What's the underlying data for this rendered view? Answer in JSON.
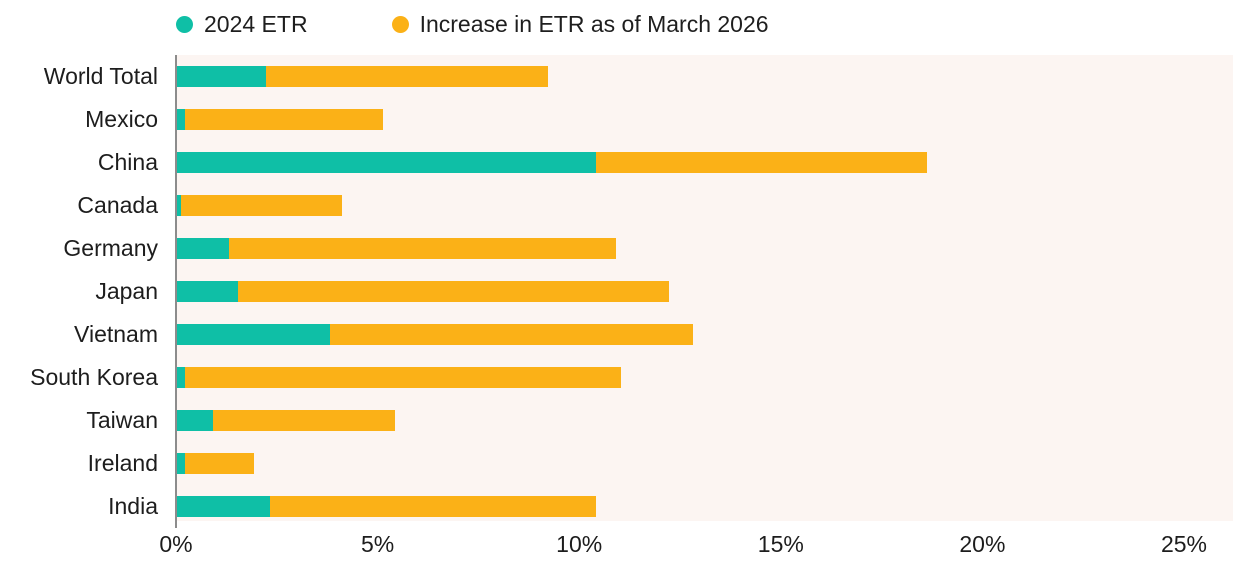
{
  "chart_data": {
    "type": "bar",
    "orientation": "horizontal",
    "stacked": true,
    "title": "",
    "xlabel": "",
    "ylabel": "",
    "categories": [
      "World Total",
      "Mexico",
      "China",
      "Canada",
      "Germany",
      "Japan",
      "Vietnam",
      "South Korea",
      "Taiwan",
      "Ireland",
      "India"
    ],
    "series": [
      {
        "name": "2024 ETR",
        "color": "#0FBFA6",
        "values": [
          2.2,
          0.2,
          10.4,
          0.1,
          1.3,
          1.5,
          3.8,
          0.2,
          0.9,
          0.2,
          2.3
        ]
      },
      {
        "name": "Increase in ETR as of March 2026",
        "color": "#FBB117",
        "values": [
          7.0,
          4.9,
          8.2,
          4.0,
          9.6,
          10.7,
          9.0,
          10.8,
          4.5,
          1.7,
          8.1
        ]
      }
    ],
    "totals": [
      9.2,
      5.1,
      18.6,
      4.1,
      10.9,
      12.2,
      12.8,
      11.0,
      5.4,
      1.9,
      10.4
    ],
    "x_ticks": [
      "0%",
      "5%",
      "10%",
      "15%",
      "20%",
      "25%"
    ],
    "xlim": [
      0,
      25
    ],
    "grid": false,
    "legend_position": "top",
    "plot_background": "#FCF5F2",
    "axis_line_color": "#8C8C8C",
    "text_color": "#1d1d1d"
  }
}
